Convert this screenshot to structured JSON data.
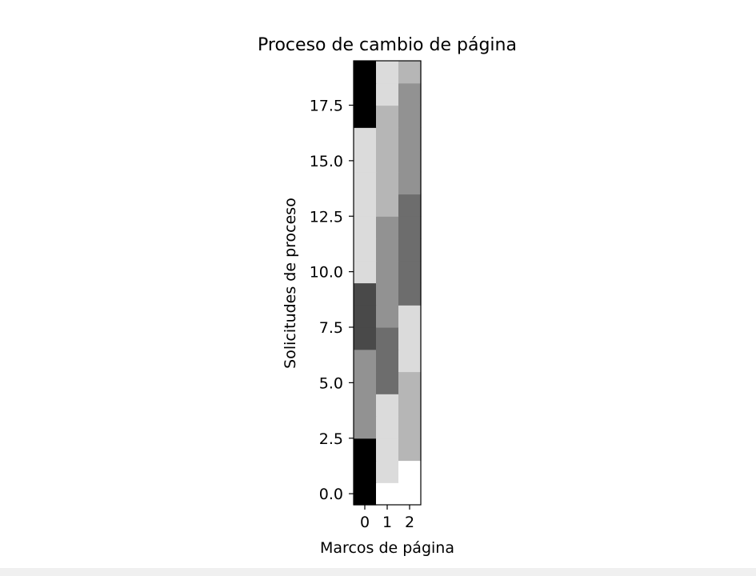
{
  "chart_data": {
    "type": "heatmap",
    "title": "Proceso de cambio de página",
    "xlabel": "Marcos de página",
    "ylabel": "Solicitudes de proceso",
    "x_ticks": [
      0,
      1,
      2
    ],
    "x_tick_labels": [
      "0",
      "1",
      "2"
    ],
    "y_ticks": [
      0.0,
      2.5,
      5.0,
      7.5,
      10.0,
      12.5,
      15.0,
      17.5
    ],
    "y_tick_labels": [
      "0.0",
      "2.5",
      "5.0",
      "7.5",
      "10.0",
      "12.5",
      "15.0",
      "17.5"
    ],
    "xlim": [
      -0.5,
      2.5
    ],
    "ylim": [
      19.5,
      -0.5
    ],
    "y_inverted": true,
    "colormap": "gray_r",
    "grid": false,
    "legend": "none",
    "rows": 20,
    "columns": 3,
    "grid_values": [
      [
        7,
        0,
        0
      ],
      [
        7,
        1,
        0
      ],
      [
        7,
        1,
        2
      ],
      [
        3,
        1,
        2
      ],
      [
        3,
        1,
        2
      ],
      [
        3,
        4,
        2
      ],
      [
        3,
        4,
        1
      ],
      [
        5,
        4,
        1
      ],
      [
        5,
        3,
        1
      ],
      [
        5,
        3,
        4
      ],
      [
        1,
        3,
        4
      ],
      [
        1,
        3,
        4
      ],
      [
        1,
        3,
        4
      ],
      [
        1,
        2,
        4
      ],
      [
        1,
        2,
        3
      ],
      [
        1,
        2,
        3
      ],
      [
        1,
        2,
        3
      ],
      [
        7,
        2,
        3
      ],
      [
        7,
        1,
        3
      ],
      [
        7,
        1,
        2
      ]
    ],
    "value_range": [
      0,
      7
    ]
  }
}
